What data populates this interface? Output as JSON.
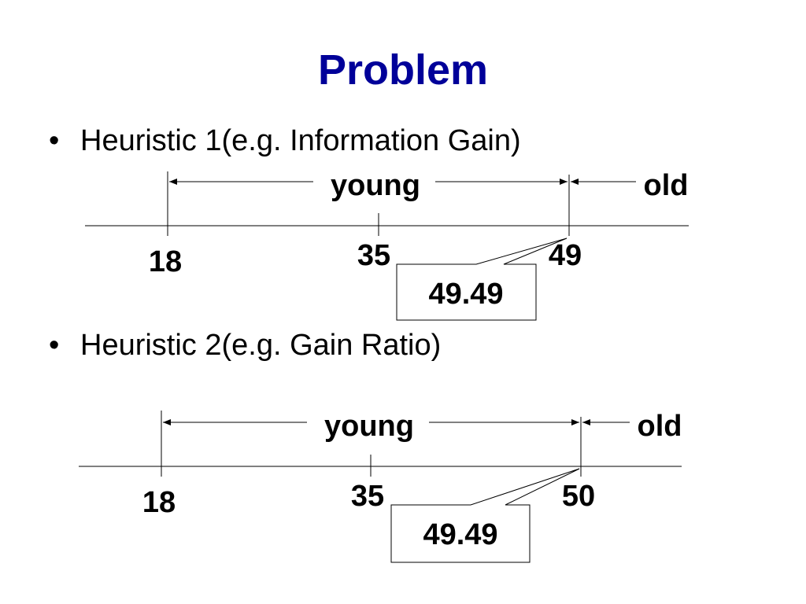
{
  "slide": {
    "title": "Problem",
    "bullets": [
      "Heuristic 1(e.g. Information Gain)",
      "Heuristic 2(e.g. Gain Ratio)"
    ]
  },
  "diagram1": {
    "range_labels": {
      "left": "young",
      "right": "old"
    },
    "ticks": [
      "18",
      "35",
      "49"
    ],
    "callout": "49.49"
  },
  "diagram2": {
    "range_labels": {
      "left": "young",
      "right": "old"
    },
    "ticks": [
      "18",
      "35",
      "50"
    ],
    "callout": "49.49"
  }
}
